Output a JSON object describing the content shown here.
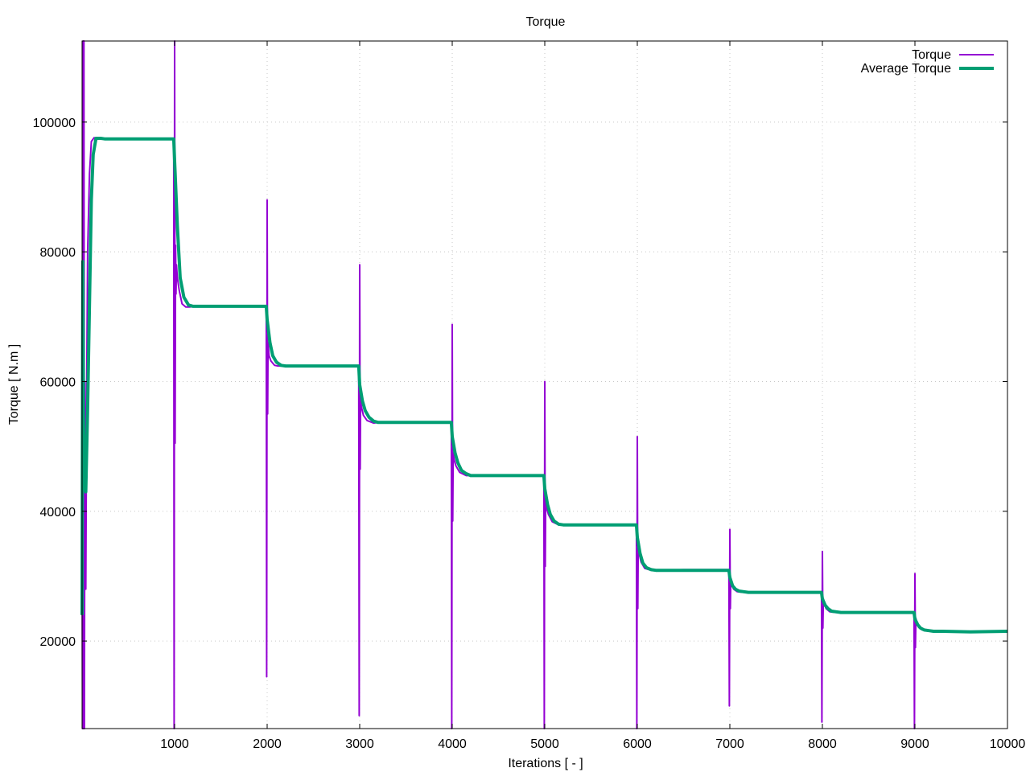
{
  "chart_data": {
    "type": "line",
    "title": "Torque",
    "xlabel": "Iterations [ - ]",
    "ylabel": "Torque [ N.m ]",
    "xlim": [
      0,
      10000
    ],
    "ylim": [
      6500,
      112500
    ],
    "xticks": [
      1000,
      2000,
      3000,
      4000,
      5000,
      6000,
      7000,
      8000,
      9000,
      10000
    ],
    "yticks": [
      20000,
      40000,
      60000,
      80000,
      100000
    ],
    "grid": true,
    "legend_position": "top-right",
    "series": [
      {
        "name": "Torque",
        "color": "#9400d3",
        "x": [
          0,
          5,
          10,
          15,
          20,
          25,
          30,
          40,
          50,
          60,
          80,
          100,
          130,
          160,
          200,
          300,
          500,
          990,
          995,
          1000,
          1005,
          1010,
          1015,
          1020,
          1030,
          1050,
          1080,
          1120,
          1160,
          1250,
          1500,
          1990,
          1995,
          2000,
          2005,
          2010,
          2020,
          2040,
          2080,
          2120,
          2200,
          2500,
          2990,
          2995,
          3000,
          3005,
          3010,
          3020,
          3040,
          3080,
          3150,
          3200,
          3500,
          3990,
          3995,
          4000,
          4005,
          4010,
          4020,
          4040,
          4080,
          4150,
          4200,
          4500,
          4990,
          4995,
          5000,
          5005,
          5010,
          5020,
          5040,
          5080,
          5150,
          5200,
          5500,
          5990,
          5995,
          6000,
          6005,
          6010,
          6020,
          6040,
          6080,
          6150,
          6200,
          6500,
          6990,
          6995,
          7000,
          7005,
          7010,
          7020,
          7040,
          7080,
          7150,
          7200,
          7500,
          7990,
          7995,
          8000,
          8005,
          8010,
          8020,
          8040,
          8080,
          8150,
          8200,
          8500,
          8990,
          8995,
          9000,
          9005,
          9010,
          9020,
          9040,
          9080,
          9150,
          9200,
          9500,
          9700,
          10000
        ],
        "y": [
          38000,
          6500,
          112500,
          6500,
          112500,
          6500,
          60000,
          28000,
          60000,
          80000,
          92000,
          97000,
          97600,
          97400,
          97500,
          97400,
          97400,
          97400,
          6500,
          112500,
          50500,
          81000,
          73500,
          78000,
          76000,
          74000,
          72000,
          71500,
          71500,
          71600,
          71600,
          71600,
          14500,
          88000,
          55000,
          66000,
          64000,
          63200,
          62500,
          62400,
          62400,
          62400,
          62400,
          8500,
          78000,
          46500,
          57000,
          56000,
          54800,
          54000,
          53600,
          53700,
          53700,
          53700,
          6500,
          68800,
          38500,
          49000,
          48000,
          47000,
          46000,
          45500,
          45500,
          45500,
          45500,
          6500,
          60000,
          31500,
          42000,
          40500,
          39500,
          38400,
          37900,
          37900,
          37900,
          37900,
          6500,
          51500,
          25000,
          34500,
          33500,
          32200,
          31200,
          30900,
          30900,
          31000,
          31000,
          10000,
          37200,
          25000,
          29500,
          28800,
          28000,
          27600,
          27500,
          27500,
          27500,
          27500,
          7500,
          33800,
          22000,
          26500,
          25800,
          25000,
          24500,
          24400,
          24400,
          24400,
          24400,
          6500,
          30400,
          19000,
          23500,
          22800,
          22100,
          21700,
          21500,
          21500,
          21500,
          21400,
          21500
        ]
      },
      {
        "name": "Average Torque",
        "color": "#009e73",
        "x": [
          0,
          8,
          15,
          25,
          40,
          60,
          80,
          100,
          120,
          150,
          200,
          250,
          400,
          990,
          1000,
          1030,
          1060,
          1100,
          1150,
          1200,
          1300,
          1500,
          1990,
          2000,
          2030,
          2060,
          2100,
          2150,
          2200,
          2300,
          2990,
          3000,
          3030,
          3060,
          3100,
          3150,
          3200,
          3300,
          3990,
          4000,
          4030,
          4060,
          4100,
          4150,
          4200,
          4300,
          4990,
          5000,
          5030,
          5060,
          5100,
          5150,
          5200,
          5300,
          5990,
          6000,
          6030,
          6060,
          6100,
          6150,
          6200,
          6300,
          6990,
          7000,
          7030,
          7060,
          7100,
          7150,
          7200,
          7300,
          7990,
          8000,
          8030,
          8060,
          8100,
          8150,
          8200,
          8300,
          8990,
          9000,
          9030,
          9060,
          9100,
          9150,
          9200,
          9300,
          9600,
          10000
        ],
        "y": [
          24000,
          78500,
          55000,
          44000,
          43000,
          56000,
          72000,
          88000,
          95000,
          97500,
          97500,
          97400,
          97400,
          97400,
          94000,
          84000,
          76000,
          73000,
          71800,
          71600,
          71600,
          71600,
          71600,
          69500,
          66000,
          64000,
          63000,
          62500,
          62400,
          62400,
          62400,
          59500,
          57000,
          55500,
          54500,
          53900,
          53700,
          53700,
          53700,
          51500,
          49000,
          47500,
          46300,
          45800,
          45500,
          45500,
          45500,
          43500,
          41000,
          39500,
          38500,
          38000,
          37900,
          37900,
          37900,
          36000,
          33500,
          32000,
          31300,
          31000,
          30900,
          30900,
          30900,
          29800,
          28500,
          28000,
          27700,
          27600,
          27500,
          27500,
          27500,
          26500,
          25500,
          25000,
          24600,
          24500,
          24400,
          24400,
          24400,
          23400,
          22500,
          22000,
          21700,
          21600,
          21500,
          21500,
          21400,
          21500
        ]
      }
    ]
  }
}
